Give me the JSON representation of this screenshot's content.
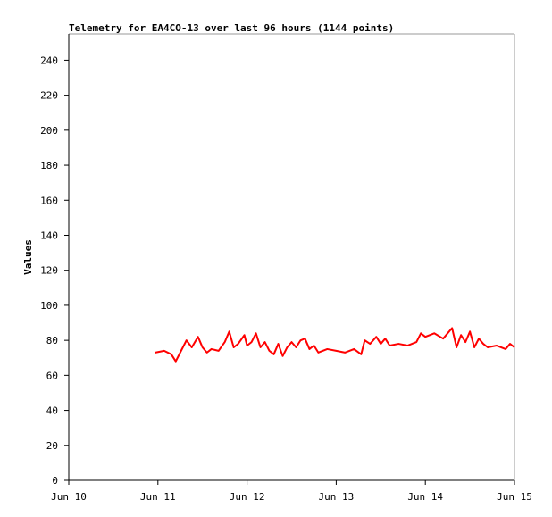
{
  "chart_data": {
    "type": "line",
    "title": "Telemetry for EA4CO-13 over last 96 hours (1144 points)",
    "y_label": "Values",
    "x": [
      10.97,
      11.07,
      11.15,
      11.2,
      11.25,
      11.32,
      11.38,
      11.45,
      11.5,
      11.55,
      11.6,
      11.68,
      11.75,
      11.8,
      11.85,
      11.9,
      11.97,
      12.0,
      12.05,
      12.1,
      12.15,
      12.2,
      12.25,
      12.3,
      12.35,
      12.4,
      12.45,
      12.5,
      12.55,
      12.6,
      12.65,
      12.7,
      12.75,
      12.8,
      12.9,
      13.0,
      13.1,
      13.2,
      13.28,
      13.32,
      13.38,
      13.45,
      13.5,
      13.55,
      13.6,
      13.7,
      13.8,
      13.9,
      13.95,
      14.0,
      14.1,
      14.2,
      14.3,
      14.35,
      14.4,
      14.45,
      14.5,
      14.55,
      14.6,
      14.65,
      14.7,
      14.8,
      14.9,
      14.95,
      15.0
    ],
    "series": [
      {
        "color": "#ff0000",
        "values": [
          73,
          74,
          72,
          68,
          73,
          80,
          76,
          82,
          76,
          73,
          75,
          74,
          79,
          85,
          76,
          78,
          83,
          77,
          79,
          84,
          76,
          79,
          74,
          72,
          78,
          71,
          76,
          79,
          76,
          80,
          81,
          75,
          77,
          73,
          75,
          74,
          73,
          75,
          72,
          80,
          78,
          82,
          78,
          81,
          77,
          78,
          77,
          79,
          84,
          82,
          84,
          81,
          87,
          76,
          83,
          79,
          85,
          76,
          81,
          78,
          76,
          77,
          75,
          78,
          76
        ]
      }
    ],
    "xlim": [
      10,
      15
    ],
    "xticks": [
      {
        "value": 10,
        "label": "Jun 10"
      },
      {
        "value": 11,
        "label": "Jun 11"
      },
      {
        "value": 12,
        "label": "Jun 12"
      },
      {
        "value": 13,
        "label": "Jun 13"
      },
      {
        "value": 14,
        "label": "Jun 14"
      },
      {
        "value": 15,
        "label": "Jun 15"
      }
    ],
    "ylim": [
      0,
      255
    ],
    "yticks": [
      0,
      20,
      40,
      60,
      80,
      100,
      120,
      140,
      160,
      180,
      200,
      220,
      240
    ]
  }
}
